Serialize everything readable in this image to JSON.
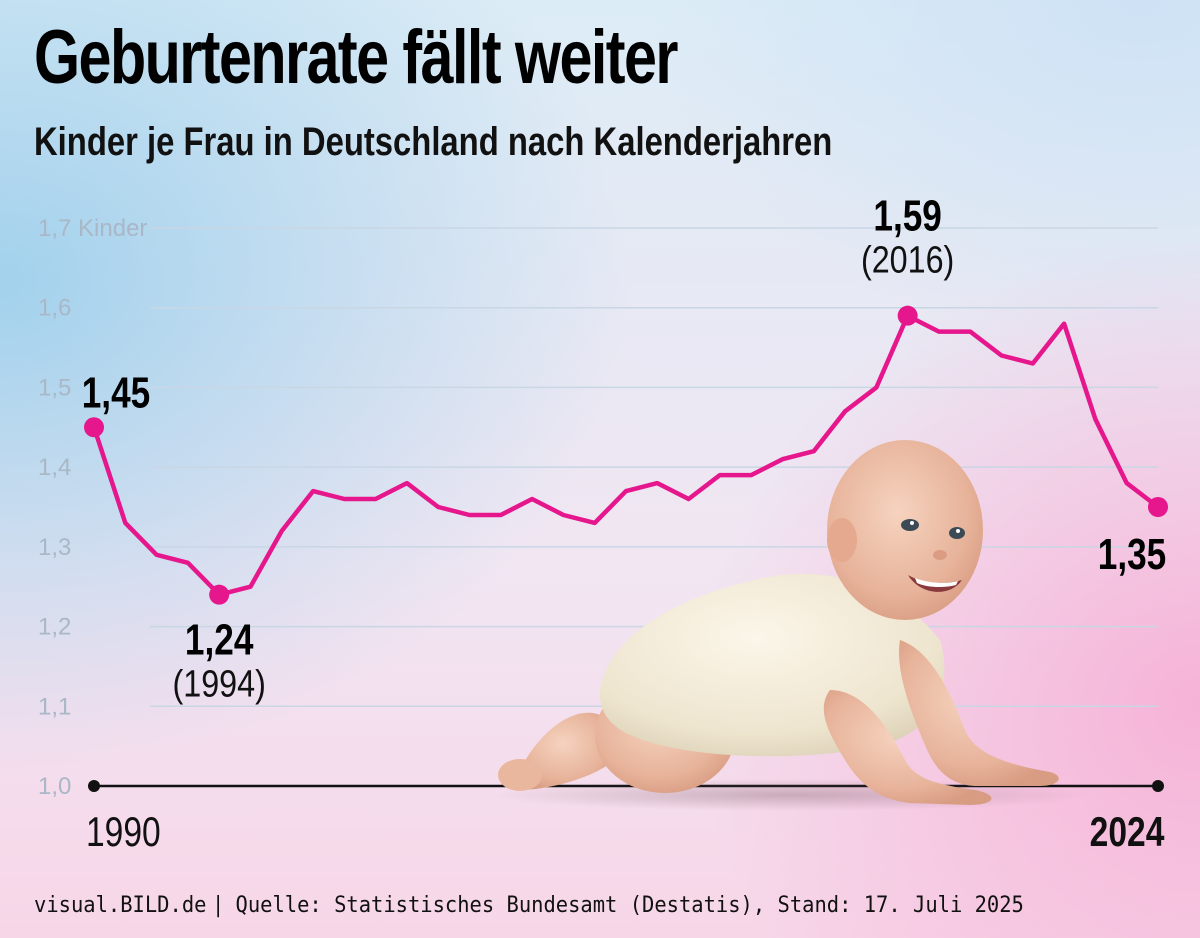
{
  "header": {
    "title": "Geburtenrate fällt weiter",
    "subtitle": "Kinder je Frau in Deutschland nach Kalenderjahren"
  },
  "footer": {
    "brand": "visual.BILD.de",
    "separator": "|",
    "source": "Quelle: Statistisches Bundesamt (Destatis), Stand: 17. Juli 2025"
  },
  "colors": {
    "line": "#e6168c",
    "grid": "#c9d6e4",
    "tick": "#a9b7c6",
    "axis": "#111111"
  },
  "image": {
    "icon": "crawling-baby-photo"
  },
  "chart_data": {
    "type": "line",
    "title": "Geburtenrate fällt weiter",
    "subtitle": "Kinder je Frau in Deutschland nach Kalenderjahren",
    "ylim": [
      1.0,
      1.7
    ],
    "xlim": [
      1990,
      2024
    ],
    "y_ticks": [
      {
        "value": 1.0,
        "label": "1,0"
      },
      {
        "value": 1.1,
        "label": "1,1"
      },
      {
        "value": 1.2,
        "label": "1,2"
      },
      {
        "value": 1.3,
        "label": "1,3"
      },
      {
        "value": 1.4,
        "label": "1,4"
      },
      {
        "value": 1.5,
        "label": "1,5"
      },
      {
        "value": 1.6,
        "label": "1,6"
      },
      {
        "value": 1.7,
        "label": "1,7 Kinder"
      }
    ],
    "x_ticks": [
      {
        "value": 1990,
        "label": "1990",
        "bold": false
      },
      {
        "value": 2024,
        "label": "2024",
        "bold": true
      }
    ],
    "grid": true,
    "series": [
      {
        "x": [
          1990,
          1991,
          1992,
          1993,
          1994,
          1995,
          1996,
          1997,
          1998,
          1999,
          2000,
          2001,
          2002,
          2003,
          2004,
          2005,
          2006,
          2007,
          2008,
          2009,
          2010,
          2011,
          2012,
          2013,
          2014,
          2015,
          2016,
          2017,
          2018,
          2019,
          2020,
          2021,
          2022,
          2023,
          2024
        ],
        "values": [
          1.45,
          1.33,
          1.29,
          1.28,
          1.24,
          1.25,
          1.32,
          1.37,
          1.36,
          1.36,
          1.38,
          1.35,
          1.34,
          1.34,
          1.36,
          1.34,
          1.33,
          1.37,
          1.38,
          1.36,
          1.39,
          1.39,
          1.41,
          1.42,
          1.47,
          1.5,
          1.59,
          1.57,
          1.57,
          1.54,
          1.53,
          1.58,
          1.46,
          1.38,
          1.35
        ]
      }
    ],
    "annotations": [
      {
        "x": 1990,
        "y": 1.45,
        "label": "1,45",
        "bold": true
      },
      {
        "x": 1994,
        "y": 1.24,
        "label": "1,24",
        "sublabel": "(1994)",
        "bold": true
      },
      {
        "x": 2016,
        "y": 1.59,
        "label": "1,59",
        "sublabel": "(2016)",
        "bold": true
      },
      {
        "x": 2024,
        "y": 1.35,
        "label": "1,35",
        "bold": true
      }
    ]
  }
}
